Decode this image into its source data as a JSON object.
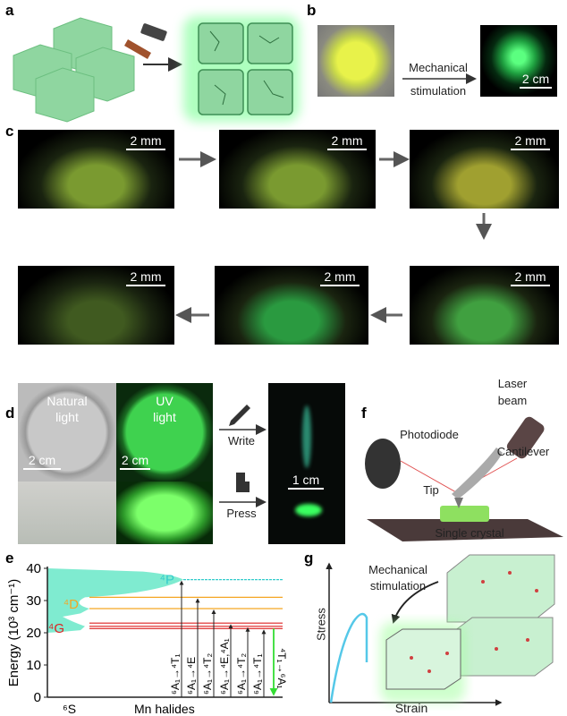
{
  "panels": {
    "a": {
      "label": "a"
    },
    "b": {
      "label": "b",
      "arrow_text_1": "Mechanical",
      "arrow_text_2": "stimulation",
      "scale": "2 cm"
    },
    "c": {
      "label": "c",
      "scale": "2 mm"
    },
    "d": {
      "label": "d",
      "natural_1": "Natural",
      "natural_2": "light",
      "uv_1": "UV",
      "uv_2": "light",
      "scale_left": "2 cm",
      "scale_mid": "2 cm",
      "scale_right": "1 cm",
      "write": "Write",
      "press": "Press"
    },
    "f": {
      "label": "f",
      "laser_1": "Laser",
      "laser_2": "beam",
      "photodiode": "Photodiode",
      "cantilever": "Cantilever",
      "tip": "Tip",
      "crystal": "Single crystal"
    },
    "g": {
      "label": "g",
      "ylabel": "Stress",
      "xlabel": "Strain",
      "arrow_1": "Mechanical",
      "arrow_2": "stimulation"
    }
  },
  "colors": {
    "glow_green": "#3dff6a",
    "crystal_green": "#9fe0b0",
    "level_cyan": "#5fe6d0",
    "level_orange": "#f5b942",
    "level_red": "#e03030",
    "emission": "#33dd33",
    "stress_curve": "#55c8e8"
  },
  "chart_data": {
    "type": "energy-level diagram",
    "panel": "e",
    "label": "e",
    "ylabel": "Energy (10³ cm⁻¹)",
    "ylim": [
      0,
      40
    ],
    "yticks": [
      "0",
      "10",
      "20",
      "30",
      "40"
    ],
    "xlabels": [
      "⁶S",
      "Mn halides"
    ],
    "terms": [
      {
        "name": "⁴P",
        "color": "#33cccc",
        "levels": [
          36.5
        ]
      },
      {
        "name": "⁴D",
        "color": "#f5a623",
        "levels": [
          31,
          27.5
        ]
      },
      {
        "name": "⁴G",
        "color": "#dd2222",
        "levels": [
          23,
          22,
          21.3
        ]
      }
    ],
    "transitions": [
      {
        "label": "⁶A₁→⁴T₁",
        "energy": 36.5,
        "direction": "up"
      },
      {
        "label": "⁶A₁→⁴E",
        "energy": 31,
        "direction": "up"
      },
      {
        "label": "⁶A₁→⁴T₂",
        "energy": 27.5,
        "direction": "up"
      },
      {
        "label": "⁶A₁→⁴E,⁴A₁",
        "energy": 23,
        "direction": "up"
      },
      {
        "label": "⁶A₁→⁴T₂",
        "energy": 22,
        "direction": "up"
      },
      {
        "label": "⁶A₁→⁴T₁",
        "energy": 21.3,
        "direction": "up"
      },
      {
        "label": "⁴T₁→⁶A₁",
        "energy": 21.3,
        "direction": "down",
        "color": "#33dd33"
      }
    ]
  }
}
